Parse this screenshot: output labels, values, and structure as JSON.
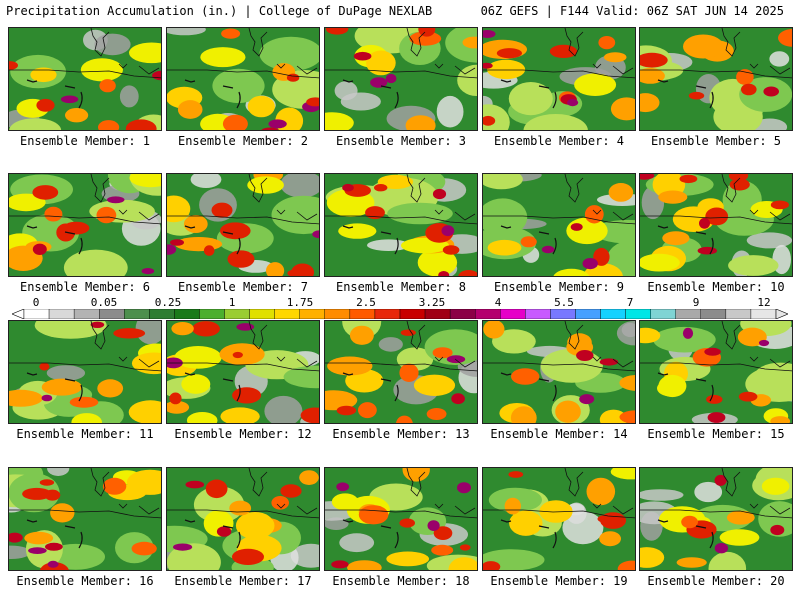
{
  "header": {
    "left_title": "Precipitation Accumulation (in.) | College of DuPage NEXLAB",
    "right_title": "06Z GEFS | F144 Valid: 06Z SAT JUN 14 2025"
  },
  "panel_label_prefix": "Ensemble Member: ",
  "panels": [
    {
      "member": "1",
      "label": "Ensemble Member: 1"
    },
    {
      "member": "2",
      "label": "Ensemble Member: 2"
    },
    {
      "member": "3",
      "label": "Ensemble Member: 3"
    },
    {
      "member": "4",
      "label": "Ensemble Member: 4"
    },
    {
      "member": "5",
      "label": "Ensemble Member: 5"
    },
    {
      "member": "6",
      "label": "Ensemble Member: 6"
    },
    {
      "member": "7",
      "label": "Ensemble Member: 7"
    },
    {
      "member": "8",
      "label": "Ensemble Member: 8"
    },
    {
      "member": "9",
      "label": "Ensemble Member: 9"
    },
    {
      "member": "10",
      "label": "Ensemble Member: 10"
    },
    {
      "member": "11",
      "label": "Ensemble Member: 11"
    },
    {
      "member": "12",
      "label": "Ensemble Member: 12"
    },
    {
      "member": "13",
      "label": "Ensemble Member: 13"
    },
    {
      "member": "14",
      "label": "Ensemble Member: 14"
    },
    {
      "member": "15",
      "label": "Ensemble Member: 15"
    },
    {
      "member": "16",
      "label": "Ensemble Member: 16"
    },
    {
      "member": "17",
      "label": "Ensemble Member: 17"
    },
    {
      "member": "18",
      "label": "Ensemble Member: 18"
    },
    {
      "member": "19",
      "label": "Ensemble Member: 19"
    },
    {
      "member": "20",
      "label": "Ensemble Member: 20"
    }
  ],
  "colorbar": {
    "labels": [
      "0",
      "0.05",
      "0.25",
      "1",
      "1.75",
      "2.5",
      "3.25",
      "4",
      "5.5",
      "7",
      "9",
      "12"
    ],
    "colors": [
      "#ffffff",
      "#d9d9d9",
      "#b3b3b3",
      "#8c8c8c",
      "#4d8f4d",
      "#2e7d32",
      "#1a7a1a",
      "#4caf2f",
      "#9acd32",
      "#e0e000",
      "#ffd700",
      "#ffb000",
      "#ff8c00",
      "#ff5a00",
      "#e8280a",
      "#c80000",
      "#a00014",
      "#8b0046",
      "#b4006e",
      "#e600c8",
      "#c85aff",
      "#7878ff",
      "#46a0ff",
      "#14d2ff",
      "#00e6e6",
      "#7fd4d4",
      "#a9a9a9",
      "#8c8c8c",
      "#c8c8c8",
      "#e6e6e6"
    ]
  }
}
